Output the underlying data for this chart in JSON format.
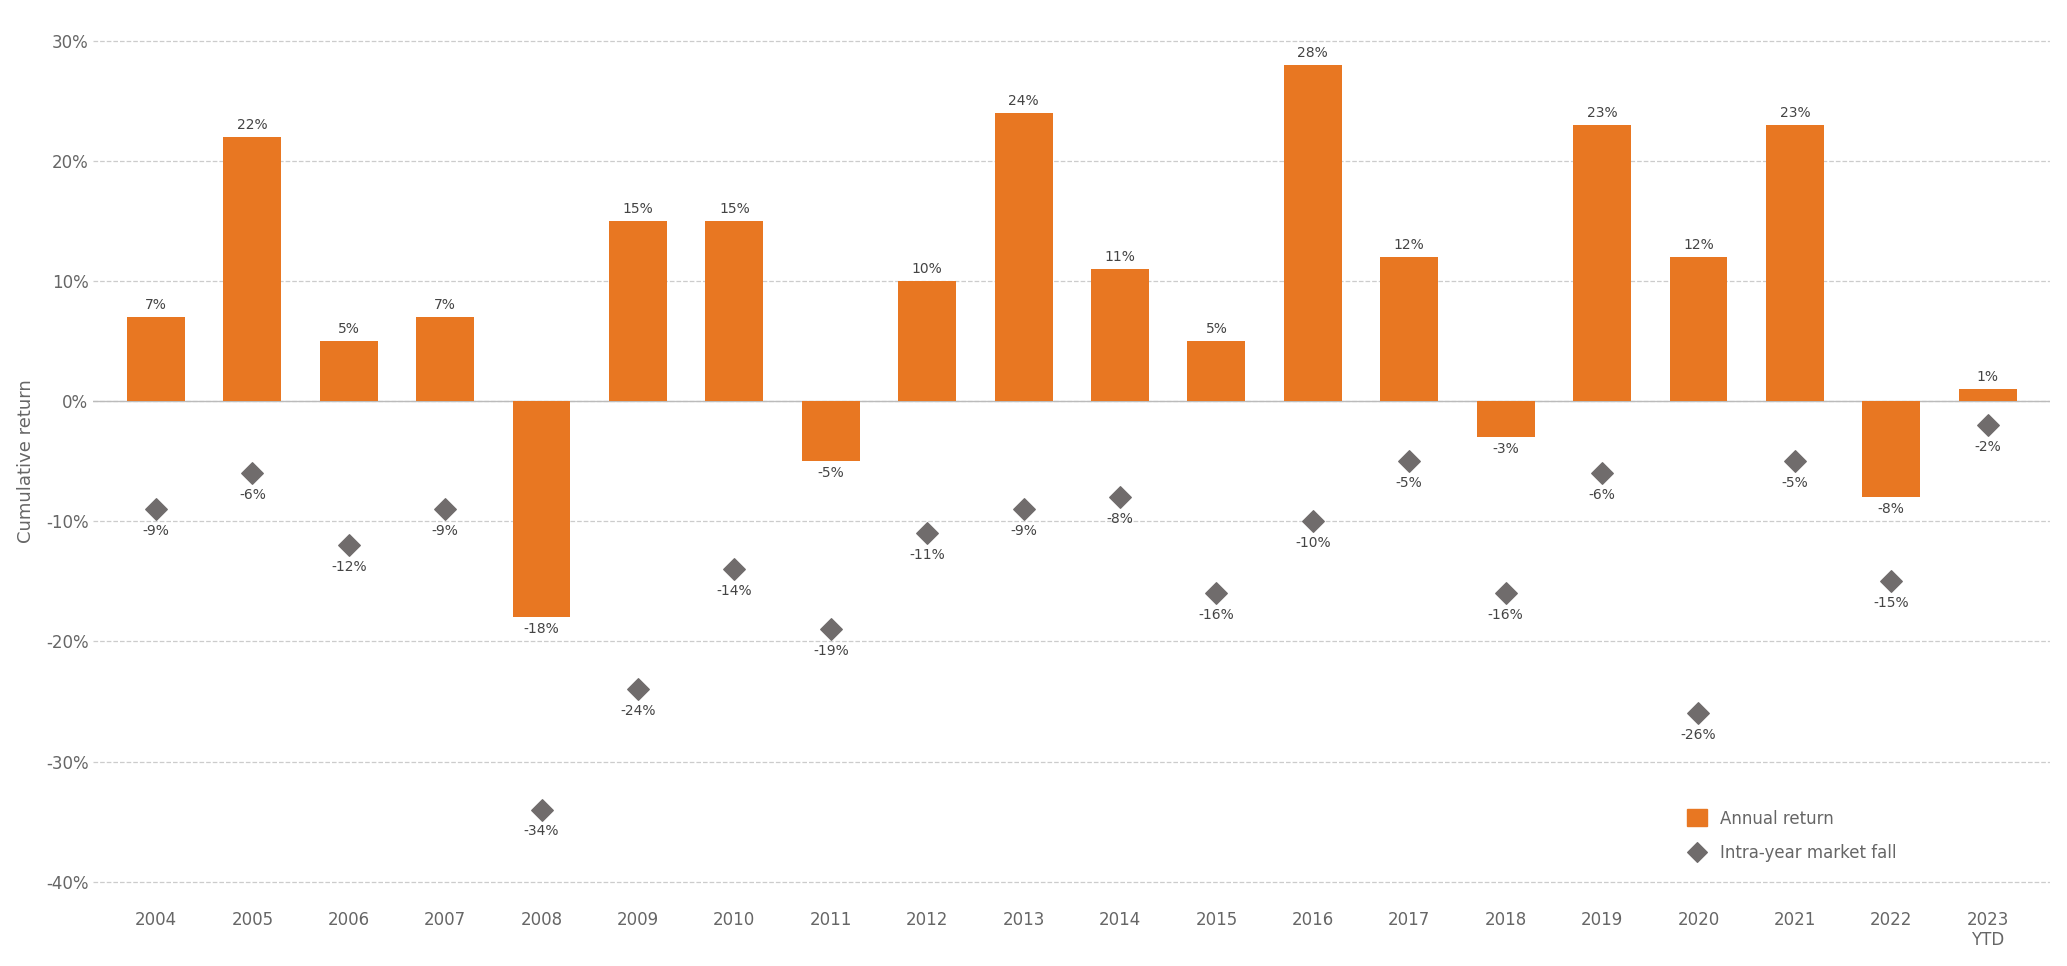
{
  "years": [
    "2004",
    "2005",
    "2006",
    "2007",
    "2008",
    "2009",
    "2010",
    "2011",
    "2012",
    "2013",
    "2014",
    "2015",
    "2016",
    "2017",
    "2018",
    "2019",
    "2020",
    "2021",
    "2022",
    "2023\nYTD"
  ],
  "annual_returns": [
    7,
    22,
    5,
    7,
    -18,
    15,
    15,
    -5,
    10,
    24,
    11,
    5,
    28,
    12,
    -3,
    23,
    12,
    23,
    -8,
    1
  ],
  "intra_year_falls": [
    -9,
    -6,
    -12,
    -9,
    -34,
    -24,
    -14,
    -19,
    -11,
    -9,
    -8,
    -16,
    -10,
    -5,
    -16,
    -6,
    -26,
    -5,
    -15,
    -2
  ],
  "bar_color": "#E87722",
  "diamond_color": "#706C6C",
  "background_color": "#FFFFFF",
  "grid_color": "#CCCCCC",
  "ylabel": "Cumulative return",
  "ylim": [
    -42,
    32
  ],
  "yticks": [
    -40,
    -30,
    -20,
    -10,
    0,
    10,
    20,
    30
  ],
  "ytick_labels": [
    "-40%",
    "-30%",
    "-20%",
    "-10%",
    "0%",
    "10%",
    "20%",
    "30%"
  ],
  "legend_annual": "Annual return",
  "legend_intra": "Intra-year market fall",
  "bar_label_fontsize": 10,
  "axis_label_fontsize": 13,
  "tick_fontsize": 12,
  "legend_fontsize": 12
}
